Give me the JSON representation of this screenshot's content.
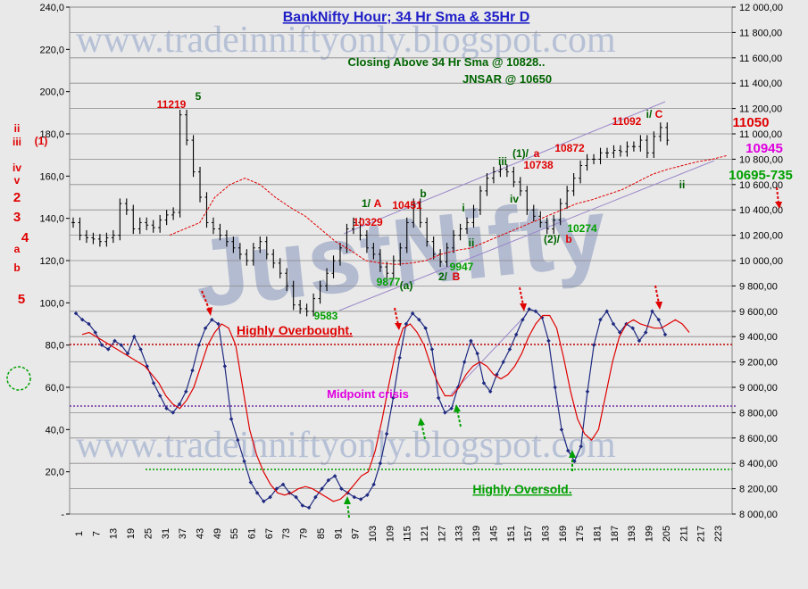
{
  "watermarks": [
    "www.tradeinniftyonly.blogspot.com",
    "www.tradeinniftyonly.blogspot.com",
    "JustNifty"
  ],
  "colors": {
    "red": "#e00000",
    "green": "#00a000",
    "navy": "#1f2a80",
    "purple": "#7030a0",
    "magenta": "#e000e0",
    "blue_title": "#1f1fc8",
    "dark_green": "#006400"
  },
  "left_axis": [
    "240,0",
    "220,0",
    "200,0",
    "180,0",
    "160,0",
    "140,0",
    "120,0",
    "100,0",
    "80,0",
    "60,0",
    "40,0",
    "20,0",
    "-"
  ],
  "right_axis": [
    "12 000,00",
    "11 800,00",
    "11 600,00",
    "11 400,00",
    "11 200,00",
    "11 000,00",
    "10 800,00",
    "10 600,00",
    "10 400,00",
    "10 200,00",
    "10 000,00",
    "9 800,00",
    "9 600,00",
    "9 400,00",
    "9 200,00",
    "9 000,00",
    "8 800,00",
    "8 600,00",
    "8 400,00",
    "8 200,00",
    "8 000,00"
  ],
  "x_axis": [
    "1",
    "7",
    "13",
    "19",
    "25",
    "31",
    "37",
    "43",
    "49",
    "55",
    "61",
    "67",
    "73",
    "79",
    "85",
    "91",
    "97",
    "103",
    "109",
    "115",
    "121",
    "127",
    "133",
    "139",
    "145",
    "151",
    "157",
    "163",
    "169",
    "175",
    "181",
    "187",
    "193",
    "199",
    "205",
    "211",
    "217",
    "223"
  ],
  "annotations": [
    {
      "text": "BankNifty Hour; 34 Hr Sma & 35Hr D",
      "color": "blue_title",
      "size": 16,
      "underline": true
    },
    {
      "text": "Closing Above 34 Hr Sma @ 10828..",
      "color": "dark_green",
      "size": 13
    },
    {
      "text": "JNSAR @ 10650",
      "color": "dark_green",
      "size": 13
    },
    {
      "text": "Highly Overbought.",
      "color": "red",
      "size": 14,
      "underline": true
    },
    {
      "text": "Midpoint crisis",
      "color": "magenta",
      "size": 13
    },
    {
      "text": "Highly Oversold.",
      "color": "green",
      "size": 14,
      "underline": true
    },
    {
      "text": "11219",
      "color": "red",
      "size": 12
    },
    {
      "text": "5",
      "color": "dark_green",
      "size": 12
    },
    {
      "text": "11092",
      "color": "red",
      "size": 12
    },
    {
      "text": "i/",
      "color": "dark_green",
      "size": 12
    },
    {
      "text": "C",
      "color": "red",
      "size": 12
    },
    {
      "text": "10872",
      "color": "red",
      "size": 12
    },
    {
      "text": "10738",
      "color": "red",
      "size": 12
    },
    {
      "text": "(1)/",
      "color": "dark_green",
      "size": 12
    },
    {
      "text": "a",
      "color": "red",
      "size": 12
    },
    {
      "text": "iii",
      "color": "dark_green",
      "size": 12
    },
    {
      "text": "iv",
      "color": "dark_green",
      "size": 12
    },
    {
      "text": "10451",
      "color": "red",
      "size": 12
    },
    {
      "text": "b",
      "color": "dark_green",
      "size": 12
    },
    {
      "text": "1/",
      "color": "dark_green",
      "size": 12
    },
    {
      "text": "A",
      "color": "red",
      "size": 12
    },
    {
      "text": "10329",
      "color": "red",
      "size": 12
    },
    {
      "text": "i",
      "color": "dark_green",
      "size": 12
    },
    {
      "text": "ii",
      "color": "dark_green",
      "size": 12
    },
    {
      "text": "10274",
      "color": "green",
      "size": 12
    },
    {
      "text": "(2)/",
      "color": "dark_green",
      "size": 12
    },
    {
      "text": "b",
      "color": "red",
      "size": 12
    },
    {
      "text": "9947",
      "color": "green",
      "size": 12
    },
    {
      "text": "2/",
      "color": "dark_green",
      "size": 12
    },
    {
      "text": "B",
      "color": "red",
      "size": 12
    },
    {
      "text": "9877",
      "color": "green",
      "size": 12
    },
    {
      "text": "(a)",
      "color": "dark_green",
      "size": 12
    },
    {
      "text": "9583",
      "color": "green",
      "size": 12
    },
    {
      "text": "ii",
      "color": "dark_green",
      "size": 12
    },
    {
      "text": "11050",
      "color": "red",
      "size": 15
    },
    {
      "text": "10945",
      "color": "magenta",
      "size": 15
    },
    {
      "text": "10695-735",
      "color": "green",
      "size": 15
    },
    {
      "text": "ii",
      "color": "red",
      "size": 12
    },
    {
      "text": "iii",
      "color": "red",
      "size": 12
    },
    {
      "text": "(1)",
      "color": "red",
      "size": 12
    },
    {
      "text": "iv",
      "color": "red",
      "size": 12
    },
    {
      "text": "v",
      "color": "red",
      "size": 12
    },
    {
      "text": "2",
      "color": "red",
      "size": 15
    },
    {
      "text": "3",
      "color": "red",
      "size": 15
    },
    {
      "text": "4",
      "color": "red",
      "size": 15
    },
    {
      "text": "a",
      "color": "red",
      "size": 12
    },
    {
      "text": "b",
      "color": "red",
      "size": 12
    },
    {
      "text": "5",
      "color": "red",
      "size": 15
    }
  ],
  "chart_data": [
    {
      "type": "line",
      "title": "BankNifty Hour; 34 Hr Sma & 35Hr D",
      "axis": "right",
      "ylim": [
        8000,
        12000
      ],
      "series": [
        {
          "values": [
            10300,
            10200,
            10180,
            10170,
            10150,
            10180,
            10200,
            10450,
            10400,
            10250,
            10300,
            10280,
            10260,
            10320,
            10360,
            10380,
            11150,
            10950,
            10700,
            10500,
            10300,
            10250,
            10200,
            10150,
            10100,
            10050,
            10000,
            10100,
            10150,
            10050,
            9980,
            9900,
            9800,
            9650,
            9620,
            9600,
            9700,
            9800,
            9900,
            10000,
            10100,
            10250,
            10300,
            10200,
            10100,
            10050,
            9950,
            9900,
            10000,
            10100,
            10300,
            10450,
            10300,
            10150,
            10050,
            9990,
            10100,
            10200,
            10250,
            10300,
            10400,
            10550,
            10650,
            10700,
            10720,
            10700,
            10620,
            10550,
            10400,
            10350,
            10300,
            10250,
            10320,
            10450,
            10550,
            10650,
            10750,
            10800,
            10800,
            10850,
            10850,
            10870,
            10860,
            10900,
            10900,
            10950,
            10850,
            10980,
            11050,
            10950,
            10920
          ]
        },
        {
          "name": "34 Hr Sma",
          "values": [
            10200,
            10250,
            10300,
            10500,
            10600,
            10650,
            10600,
            10500,
            10420,
            10350,
            10250,
            10150,
            10080,
            10000,
            9980,
            9970,
            9980,
            10000,
            10050,
            10080,
            10100,
            10150,
            10200,
            10250,
            10300,
            10350,
            10400,
            10450,
            10480,
            10520,
            10560,
            10620,
            10680,
            10720,
            10750,
            10780,
            10800,
            10830
          ]
        }
      ]
    },
    {
      "type": "line",
      "axis": "left",
      "ylim": [
        0,
        240
      ],
      "series": [
        {
          "values": [
            95,
            92,
            90,
            86,
            80,
            78,
            82,
            80,
            76,
            84,
            78,
            70,
            62,
            56,
            50,
            48,
            52,
            58,
            68,
            80,
            88,
            92,
            90,
            70,
            45,
            35,
            25,
            15,
            10,
            6,
            8,
            12,
            14,
            10,
            8,
            4,
            3,
            8,
            12,
            16,
            18,
            12,
            10,
            8,
            7,
            9,
            14,
            24,
            38,
            55,
            74,
            90,
            95,
            92,
            88,
            78,
            55,
            48,
            50,
            60,
            72,
            82,
            76,
            62,
            58,
            66,
            72,
            78,
            85,
            92,
            97,
            96,
            93,
            82,
            60,
            40,
            30,
            25,
            32,
            58,
            80,
            92,
            96,
            90,
            86,
            90,
            88,
            82,
            86,
            96,
            92,
            85
          ]
        },
        {
          "name": "35Hr D",
          "values": [
            85,
            86,
            84,
            82,
            80,
            78,
            76,
            74,
            72,
            70,
            66,
            62,
            56,
            52,
            50,
            54,
            60,
            70,
            80,
            86,
            90,
            88,
            80,
            60,
            40,
            28,
            20,
            14,
            10,
            9,
            10,
            12,
            13,
            12,
            10,
            8,
            6,
            7,
            10,
            14,
            18,
            20,
            30,
            45,
            62,
            78,
            88,
            90,
            86,
            80,
            70,
            62,
            56,
            56,
            60,
            66,
            70,
            72,
            70,
            66,
            64,
            66,
            70,
            76,
            84,
            90,
            94,
            94,
            88,
            74,
            58,
            45,
            38,
            35,
            40,
            56,
            72,
            84,
            90,
            92,
            90,
            89,
            88,
            88,
            90,
            92,
            90,
            86
          ]
        }
      ]
    }
  ]
}
